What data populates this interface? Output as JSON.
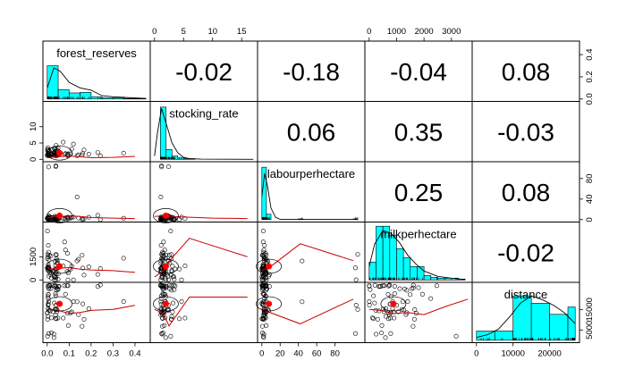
{
  "chart_data": {
    "type": "scatter-matrix",
    "variables": [
      "forest_reserves",
      "stocking_rate",
      "labourperhectare",
      "milkperhectare",
      "distance"
    ],
    "correlations": [
      {
        "row": 0,
        "col": 1,
        "label": "-0.02"
      },
      {
        "row": 0,
        "col": 2,
        "label": "-0.18"
      },
      {
        "row": 0,
        "col": 3,
        "label": "-0.04"
      },
      {
        "row": 0,
        "col": 4,
        "label": "0.08"
      },
      {
        "row": 1,
        "col": 2,
        "label": "0.06"
      },
      {
        "row": 1,
        "col": 3,
        "label": "0.35"
      },
      {
        "row": 1,
        "col": 4,
        "label": "-0.03"
      },
      {
        "row": 2,
        "col": 3,
        "label": "0.25"
      },
      {
        "row": 2,
        "col": 4,
        "label": "0.08"
      },
      {
        "row": 3,
        "col": 4,
        "label": "-0.02"
      }
    ],
    "ranges": {
      "forest_reserves": [
        0,
        0.45
      ],
      "stocking_rate": [
        0,
        17
      ],
      "labourperhectare": [
        0,
        108
      ],
      "milkperhectare": [
        0,
        3600
      ],
      "distance": [
        0,
        27000
      ]
    },
    "axes": {
      "bottom": [
        {
          "col": 0,
          "ticks": [
            0.0,
            0.1,
            0.2,
            0.3,
            0.4
          ],
          "labels": [
            "0.0",
            "0.1",
            "0.2",
            "0.3",
            "0.4"
          ]
        },
        {
          "col": 2,
          "ticks": [
            0,
            20,
            40,
            60,
            80
          ],
          "labels": [
            "0",
            "20",
            "40",
            "60",
            "80"
          ]
        },
        {
          "col": 4,
          "ticks": [
            0,
            10000,
            20000
          ],
          "labels": [
            "0",
            "10000",
            "20000"
          ]
        }
      ],
      "top": [
        {
          "col": 1,
          "ticks": [
            0,
            5,
            10,
            15
          ],
          "labels": [
            "0",
            "5",
            "10",
            "15"
          ]
        },
        {
          "col": 3,
          "ticks": [
            0,
            1000,
            2000,
            3000
          ],
          "labels": [
            "0",
            "1000",
            "2000",
            "3000"
          ]
        }
      ],
      "left": [
        {
          "row": 1,
          "ticks": [
            0,
            5,
            10
          ],
          "labels": [
            "0",
            "5",
            "10"
          ]
        },
        {
          "row": 3,
          "ticks": [
            0,
            1500
          ],
          "labels": [
            "0",
            "1500"
          ]
        }
      ],
      "right": [
        {
          "row": 0,
          "ticks": [
            0.0,
            0.2,
            0.4
          ],
          "labels": [
            "0.0",
            "0.2",
            "0.4"
          ]
        },
        {
          "row": 2,
          "ticks": [
            0,
            40,
            80
          ],
          "labels": [
            "0",
            "40",
            "80"
          ]
        },
        {
          "row": 4,
          "ticks": [
            5000,
            15000
          ],
          "labels": [
            "5000",
            "15000"
          ]
        }
      ]
    },
    "histograms": [
      {
        "var": "forest_reserves",
        "breaks": [
          0,
          0.05,
          0.1,
          0.15,
          0.2,
          0.25,
          0.3,
          0.35,
          0.4,
          0.45
        ],
        "heights": [
          0.3,
          0.085,
          0.055,
          0.06,
          0.02,
          0.01,
          0.01,
          0.005,
          0.005
        ],
        "hist_max": 0.5,
        "density": [
          [
            0,
            0.1
          ],
          [
            0.03,
            0.28
          ],
          [
            0.06,
            0.25
          ],
          [
            0.1,
            0.15
          ],
          [
            0.15,
            0.1
          ],
          [
            0.2,
            0.08
          ],
          [
            0.25,
            0.03
          ],
          [
            0.3,
            0.02
          ],
          [
            0.35,
            0.015
          ],
          [
            0.4,
            0.01
          ],
          [
            0.45,
            0.005
          ]
        ]
      },
      {
        "var": "stocking_rate",
        "breaks": [
          0,
          1,
          2,
          3,
          4,
          5,
          6,
          7,
          8,
          9,
          10,
          11,
          12,
          13,
          14,
          15,
          16,
          17
        ],
        "heights": [
          0,
          80,
          15,
          5,
          2,
          1,
          1,
          0,
          0,
          0,
          0,
          0,
          0,
          0,
          0,
          0,
          0
        ],
        "hist_max": 85,
        "density": [
          [
            0,
            5
          ],
          [
            0.5,
            40
          ],
          [
            1.2,
            78
          ],
          [
            2,
            55
          ],
          [
            3,
            25
          ],
          [
            4,
            10
          ],
          [
            5,
            3
          ],
          [
            6,
            1
          ],
          [
            8,
            0.3
          ],
          [
            17,
            0
          ]
        ]
      },
      {
        "var": "labourperhectare",
        "breaks": [
          0,
          5,
          10,
          15,
          20,
          25,
          30,
          35,
          40,
          45,
          50,
          55,
          60,
          65,
          70,
          75,
          80,
          85,
          90,
          95,
          100,
          105
        ],
        "heights": [
          68,
          7,
          0,
          0,
          0,
          0,
          0,
          0,
          1,
          0,
          0,
          0,
          0,
          0,
          0,
          0,
          0,
          0,
          0,
          0,
          1
        ],
        "hist_max": 72,
        "density": [
          [
            0,
            30
          ],
          [
            3,
            60
          ],
          [
            6,
            45
          ],
          [
            10,
            15
          ],
          [
            15,
            3
          ],
          [
            20,
            0.5
          ],
          [
            40,
            0.5
          ],
          [
            60,
            0.2
          ],
          [
            100,
            0.5
          ],
          [
            105,
            0
          ]
        ]
      },
      {
        "var": "milkperhectare",
        "breaks": [
          0,
          250,
          500,
          750,
          1000,
          1250,
          1500,
          1750,
          2000,
          2250,
          2500,
          2750,
          3000,
          3250,
          3500
        ],
        "heights": [
          20,
          60,
          60,
          50,
          35,
          25,
          15,
          15,
          5,
          3,
          2,
          2,
          2,
          1
        ],
        "hist_max": 62,
        "density": [
          [
            0,
            15
          ],
          [
            200,
            40
          ],
          [
            500,
            55
          ],
          [
            800,
            52
          ],
          [
            1100,
            42
          ],
          [
            1400,
            28
          ],
          [
            1700,
            18
          ],
          [
            2000,
            10
          ],
          [
            2500,
            4
          ],
          [
            3000,
            2
          ],
          [
            3500,
            0.5
          ]
        ]
      },
      {
        "var": "distance",
        "breaks": [
          0,
          5000,
          10000,
          15000,
          20000,
          25000,
          27000
        ],
        "heights": [
          10,
          10,
          48,
          40,
          28,
          36
        ],
        "hist_max": 60,
        "density": [
          [
            0,
            3
          ],
          [
            3000,
            6
          ],
          [
            6000,
            12
          ],
          [
            9000,
            25
          ],
          [
            12000,
            40
          ],
          [
            15000,
            48
          ],
          [
            18000,
            44
          ],
          [
            21000,
            38
          ],
          [
            24000,
            30
          ],
          [
            27000,
            18
          ]
        ]
      }
    ],
    "loess": [
      {
        "row": 1,
        "col": 0,
        "points": [
          [
            0.0,
            0.5
          ],
          [
            0.05,
            0.8
          ],
          [
            0.1,
            1.0
          ],
          [
            0.15,
            0.8
          ],
          [
            0.2,
            0.5
          ],
          [
            0.3,
            0.6
          ],
          [
            0.4,
            0.9
          ]
        ]
      },
      {
        "row": 2,
        "col": 0,
        "points": [
          [
            0.0,
            4
          ],
          [
            0.05,
            6
          ],
          [
            0.1,
            7
          ],
          [
            0.15,
            6
          ],
          [
            0.2,
            4
          ],
          [
            0.3,
            3
          ],
          [
            0.4,
            2
          ]
        ]
      },
      {
        "row": 2,
        "col": 1,
        "points": [
          [
            0.0,
            6
          ],
          [
            1.0,
            7
          ],
          [
            2.0,
            7
          ],
          [
            5.0,
            5
          ],
          [
            10.0,
            3
          ],
          [
            16.0,
            2
          ]
        ]
      },
      {
        "row": 3,
        "col": 0,
        "points": [
          [
            0.0,
            700
          ],
          [
            0.05,
            750
          ],
          [
            0.1,
            800
          ],
          [
            0.15,
            700
          ],
          [
            0.2,
            650
          ],
          [
            0.3,
            600
          ],
          [
            0.4,
            500
          ]
        ]
      },
      {
        "row": 3,
        "col": 1,
        "points": [
          [
            0.0,
            200
          ],
          [
            0.8,
            400
          ],
          [
            1.5,
            600
          ],
          [
            2.5,
            1200
          ],
          [
            6.0,
            2700
          ],
          [
            16.0,
            1500
          ]
        ]
      },
      {
        "row": 3,
        "col": 2,
        "points": [
          [
            0.0,
            600
          ],
          [
            3.0,
            700
          ],
          [
            6.0,
            700
          ],
          [
            42.0,
            2350
          ],
          [
            100.0,
            1250
          ]
        ]
      },
      {
        "row": 4,
        "col": 0,
        "points": [
          [
            0.0,
            15000
          ],
          [
            0.05,
            14500
          ],
          [
            0.1,
            13000
          ],
          [
            0.15,
            13500
          ],
          [
            0.2,
            14500
          ],
          [
            0.3,
            15000
          ],
          [
            0.4,
            17000
          ]
        ]
      },
      {
        "row": 4,
        "col": 1,
        "points": [
          [
            0.0,
            15000
          ],
          [
            0.8,
            14000
          ],
          [
            1.5,
            13000
          ],
          [
            2.5,
            7000
          ],
          [
            6.0,
            21000
          ],
          [
            16.0,
            21000
          ]
        ]
      },
      {
        "row": 4,
        "col": 2,
        "points": [
          [
            0.0,
            15500
          ],
          [
            3.0,
            14500
          ],
          [
            6.0,
            14000
          ],
          [
            42.0,
            8000
          ],
          [
            100.0,
            20000
          ]
        ]
      },
      {
        "row": 4,
        "col": 3,
        "points": [
          [
            0.0,
            15000
          ],
          [
            400.0,
            14500
          ],
          [
            900.0,
            13000
          ],
          [
            1400.0,
            13500
          ],
          [
            2000.0,
            12500
          ],
          [
            2800.0,
            16500
          ],
          [
            3600.0,
            20000
          ]
        ]
      }
    ],
    "means_marker_color": "#ff0000",
    "hist_fill_color": "#00ffff",
    "loess_color": "#cc0000",
    "grid": false,
    "legend": "none"
  }
}
